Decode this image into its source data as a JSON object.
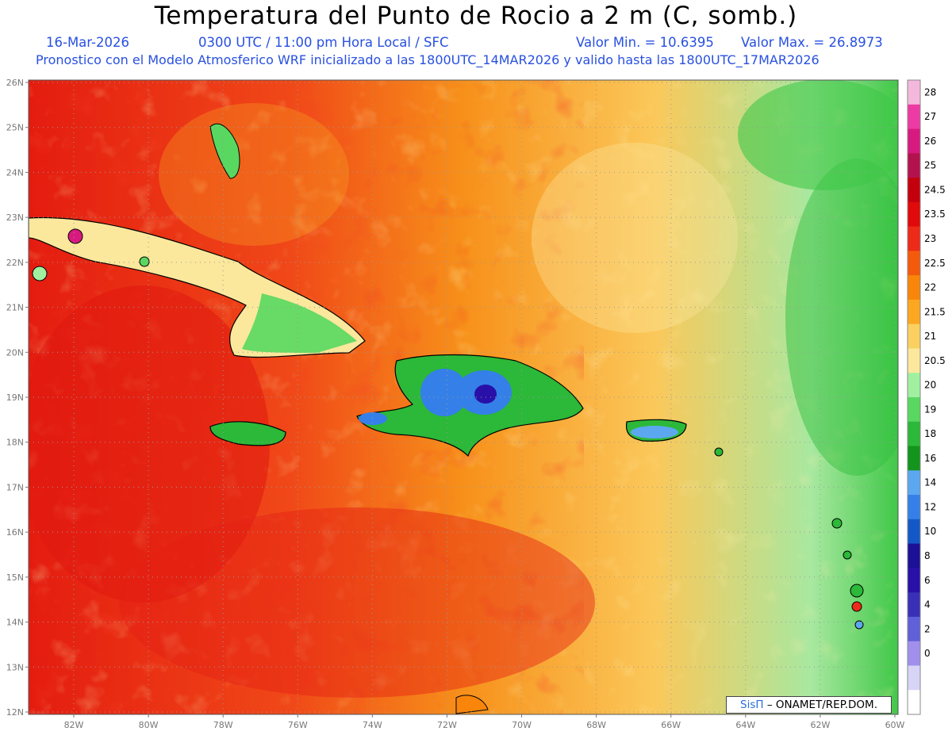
{
  "title": "Temperatura del Punto de Rocio a 2 m (C, somb.)",
  "date": "16-Mar-2026",
  "time": "0300 UTC / 11:00 pm Hora Local / SFC",
  "min_value": "Valor Min. = 10.6395",
  "max_value": "Valor Max. = 26.8973",
  "forecast_text": "Pronostico con el Modelo Atmosferico WRF inicializado a las 1800UTC_14MAR2026 y valido hasta las  1800UTC_17MAR2026",
  "lat_ticks": [
    "26N",
    "25N",
    "24N",
    "23N",
    "22N",
    "21N",
    "20N",
    "19N",
    "18N",
    "17N",
    "16N",
    "15N",
    "14N",
    "13N",
    "12N"
  ],
  "lon_ticks": [
    "82W",
    "80W",
    "78W",
    "76W",
    "74W",
    "72W",
    "70W",
    "68W",
    "66W",
    "64W",
    "62W",
    "60W"
  ],
  "colorbar": {
    "labels": [
      "28",
      "27",
      "26",
      "25",
      "24.5",
      "23.5",
      "23",
      "22.5",
      "22",
      "21.5",
      "21",
      "20.5",
      "20",
      "19",
      "18",
      "16",
      "14",
      "12",
      "10",
      "8",
      "6",
      "4",
      "2",
      "0"
    ],
    "colors": [
      "#f4b8dc",
      "#ee3aa4",
      "#d81a80",
      "#b4124e",
      "#c4000e",
      "#e00a0a",
      "#ee2a18",
      "#f45a0c",
      "#f9860a",
      "#fba820",
      "#fbd060",
      "#fbe89c",
      "#a0f0a0",
      "#58d860",
      "#2cb838",
      "#13941c",
      "#5ca8f0",
      "#3480e8",
      "#1458c8",
      "#1c1096",
      "#2810a8",
      "#3a30b8",
      "#6060d8",
      "#a090ec",
      "#d8d4f8",
      "#ffffff"
    ]
  },
  "credit": {
    "brand": "SisΠ",
    "text": "– ONAMET/REP.DOM."
  }
}
